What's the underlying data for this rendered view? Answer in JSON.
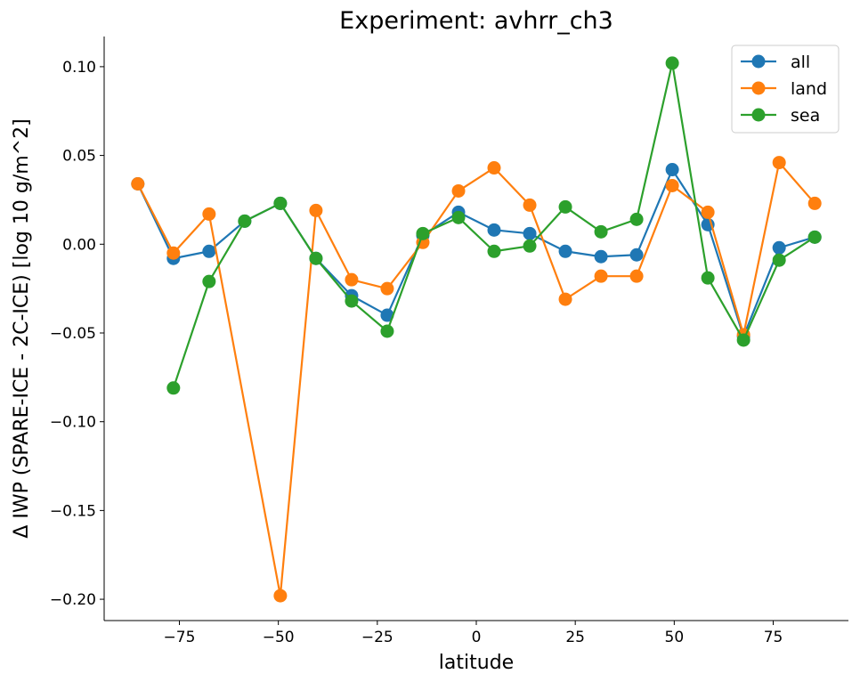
{
  "chart_data": {
    "type": "line",
    "title": "Experiment: avhrr_ch3",
    "xlabel": "latitude",
    "ylabel": "Δ IWP (SPARE-ICE - 2C-ICE) [log 10 g/m^2]",
    "xlim": [
      -94,
      94
    ],
    "ylim": [
      -0.212,
      0.117
    ],
    "xticks": [
      -75,
      -50,
      -25,
      0,
      25,
      50,
      75
    ],
    "xtick_labels": [
      "−75",
      "−50",
      "−25",
      "0",
      "25",
      "50",
      "75"
    ],
    "yticks": [
      -0.2,
      -0.15,
      -0.1,
      -0.05,
      0.0,
      0.05,
      0.1
    ],
    "ytick_labels": [
      "−0.20",
      "−0.15",
      "−0.10",
      "−0.05",
      "0.00",
      "0.05",
      "0.10"
    ],
    "grid": false,
    "legend_position": "top-right",
    "series": [
      {
        "name": "all",
        "color": "#1f77b4",
        "x": [
          -85.5,
          -76.5,
          -67.5,
          -58.5,
          -49.5,
          -40.5,
          -31.5,
          -22.5,
          -13.5,
          -4.5,
          4.5,
          13.5,
          22.5,
          31.5,
          40.5,
          49.5,
          58.5,
          67.5,
          76.5,
          85.5
        ],
        "y": [
          0.034,
          -0.008,
          -0.004,
          0.013,
          0.023,
          -0.008,
          -0.029,
          -0.04,
          0.005,
          0.018,
          0.008,
          0.006,
          -0.004,
          -0.007,
          -0.006,
          0.042,
          0.011,
          -0.052,
          -0.002,
          0.004
        ]
      },
      {
        "name": "land",
        "color": "#ff7f0e",
        "x": [
          -85.5,
          -76.5,
          -67.5,
          -49.5,
          -40.5,
          -31.5,
          -22.5,
          -13.5,
          -4.5,
          4.5,
          13.5,
          22.5,
          31.5,
          40.5,
          49.5,
          58.5,
          67.5,
          76.5,
          85.5
        ],
        "y": [
          0.034,
          -0.005,
          0.017,
          -0.198,
          0.019,
          -0.02,
          -0.025,
          0.001,
          0.03,
          0.043,
          0.022,
          -0.031,
          -0.018,
          -0.018,
          0.033,
          0.018,
          -0.051,
          0.046,
          0.023
        ]
      },
      {
        "name": "sea",
        "color": "#2ca02c",
        "x": [
          -76.5,
          -67.5,
          -58.5,
          -49.5,
          -40.5,
          -31.5,
          -22.5,
          -13.5,
          -4.5,
          4.5,
          13.5,
          22.5,
          31.5,
          40.5,
          49.5,
          58.5,
          67.5,
          76.5,
          85.5
        ],
        "y": [
          -0.081,
          -0.021,
          0.013,
          0.023,
          -0.008,
          -0.032,
          -0.049,
          0.006,
          0.015,
          -0.004,
          -0.001,
          0.021,
          0.007,
          0.014,
          0.102,
          -0.019,
          -0.054,
          -0.009,
          0.004
        ]
      }
    ]
  }
}
